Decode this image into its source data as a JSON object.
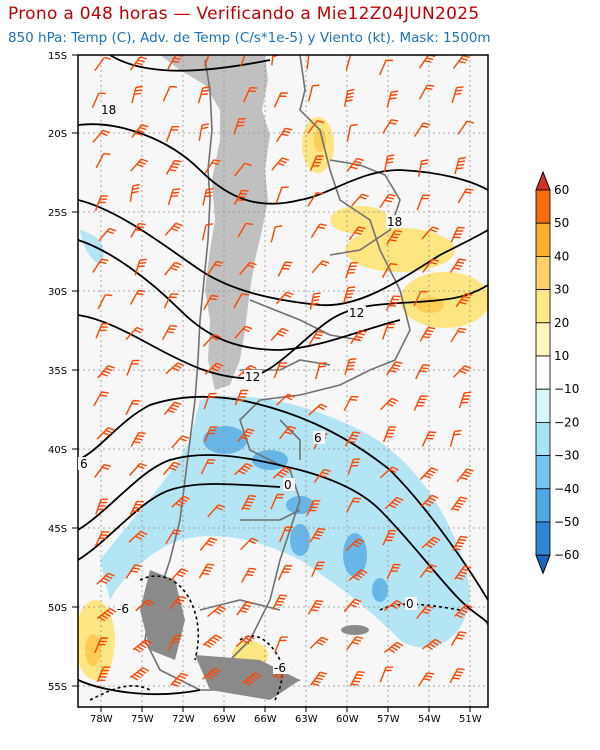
{
  "header": {
    "title": "Prono a 048 horas — Verificando a Mie12Z04JUN2025",
    "subtitle": "850 hPa: Temp (C), Adv. de Temp (C/s*1e-5) y Viento (kt). Mask: 1500m"
  },
  "map": {
    "lat_labels": [
      "15S",
      "20S",
      "25S",
      "30S",
      "35S",
      "40S",
      "45S",
      "50S",
      "55S"
    ],
    "lon_labels": [
      "78W",
      "75W",
      "72W",
      "69W",
      "66W",
      "63W",
      "60W",
      "57W",
      "54W",
      "51W"
    ],
    "contour_labels": [
      "18",
      "18",
      "12",
      "12",
      "6",
      "6",
      "0",
      "0",
      "-6",
      "-6"
    ],
    "mask_color": "#c0c0c0",
    "coast_color": "#707070",
    "wind_barb_color": "#ff4500",
    "warm_adv_color": "#ffe36e",
    "cold_adv_color": "#74c3f0"
  },
  "colorbar": {
    "ticks": [
      "60",
      "50",
      "40",
      "30",
      "20",
      "10",
      "−10",
      "−20",
      "−30",
      "−40",
      "−50",
      "−60"
    ],
    "colors": [
      "#d7301f",
      "#f46d0e",
      "#fdae2c",
      "#fed06a",
      "#ffe88a",
      "#fff6c0",
      "#ffffff",
      "#d7f7fb",
      "#a8e2f5",
      "#74c3f0",
      "#4fa7e4",
      "#2f86d4",
      "#1a66c2"
    ]
  }
}
